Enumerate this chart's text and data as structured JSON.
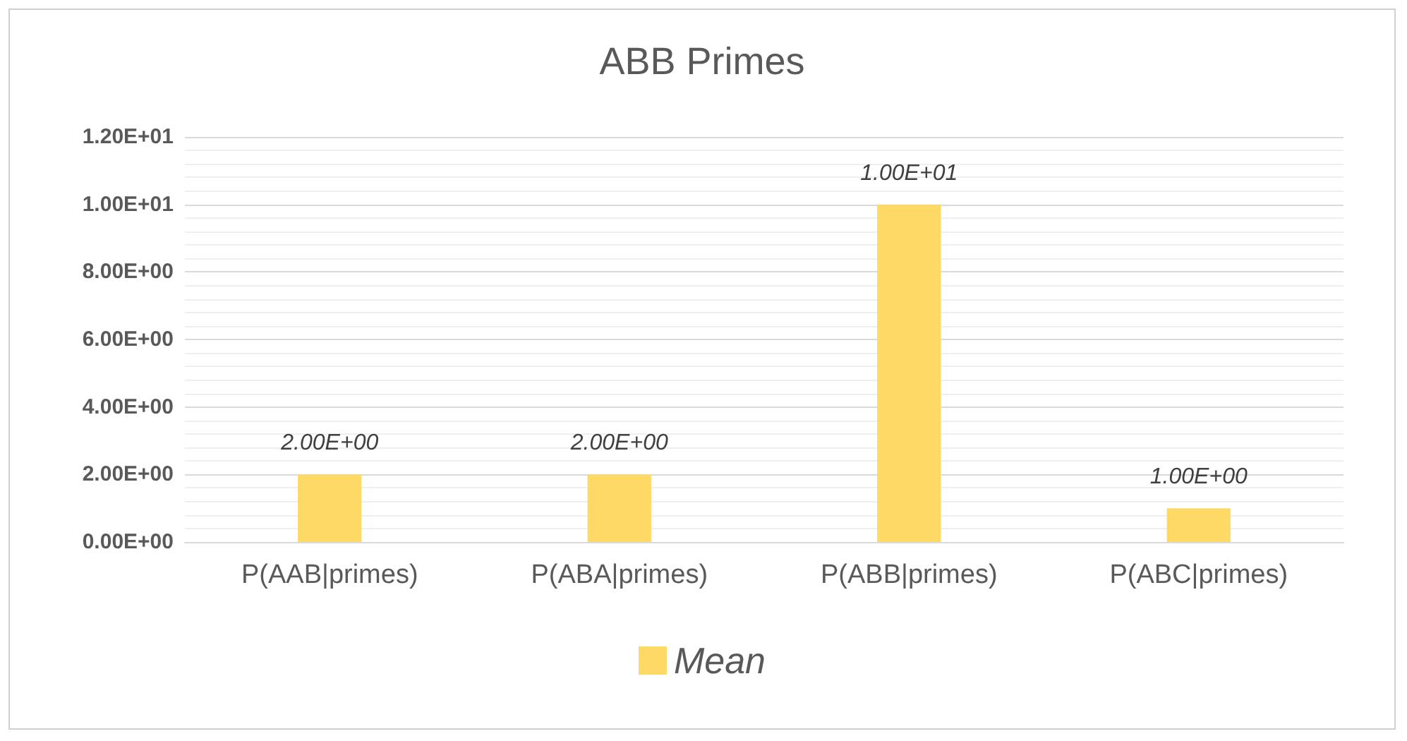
{
  "chart_data": {
    "type": "bar",
    "title": "ABB Primes",
    "categories": [
      "P(AAB|primes)",
      "P(ABA|primes)",
      "P(ABB|primes)",
      "P(ABC|primes)"
    ],
    "series": [
      {
        "name": "Mean",
        "color": "#ffd966",
        "values": [
          2,
          2,
          10,
          1
        ],
        "value_labels": [
          "2.00E+00",
          "2.00E+00",
          "1.00E+01",
          "1.00E+00"
        ]
      }
    ],
    "ylim": [
      0,
      12
    ],
    "yticks": [
      {
        "value": 0,
        "label": "0.00E+00"
      },
      {
        "value": 2,
        "label": "2.00E+00"
      },
      {
        "value": 4,
        "label": "4.00E+00"
      },
      {
        "value": 6,
        "label": "6.00E+00"
      },
      {
        "value": 8,
        "label": "8.00E+00"
      },
      {
        "value": 10,
        "label": "1.00E+01"
      },
      {
        "value": 12,
        "label": "1.20E+01"
      }
    ],
    "grid": "y",
    "legend": "bottom"
  }
}
